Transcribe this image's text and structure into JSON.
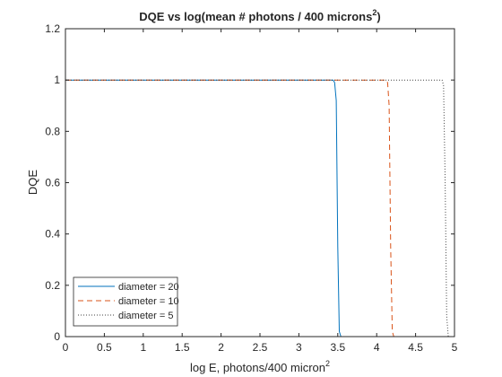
{
  "chart_data": {
    "type": "line",
    "title": {
      "main": "DQE vs log(mean # photons / 400 microns",
      "sup": "2",
      "tail": ")"
    },
    "xlabel": {
      "main": "log E, photons/400 micron",
      "sup": "2"
    },
    "ylabel": "DQE",
    "xlim": [
      0,
      5
    ],
    "ylim": [
      0,
      1.2
    ],
    "xticks": [
      0,
      0.5,
      1,
      1.5,
      2,
      2.5,
      3,
      3.5,
      4,
      4.5,
      5
    ],
    "xtick_labels": [
      "0",
      "0.5",
      "1",
      "1.5",
      "2",
      "2.5",
      "3",
      "3.5",
      "4",
      "4.5",
      "5"
    ],
    "yticks": [
      0,
      0.2,
      0.4,
      0.6,
      0.8,
      1,
      1.2
    ],
    "ytick_labels": [
      "0",
      "0.2",
      "0.4",
      "0.6",
      "0.8",
      "1",
      "1.2"
    ],
    "grid": false,
    "legend_position": "bottom-left",
    "series": [
      {
        "name": "diameter = 20",
        "color": "#0072BD",
        "style": "solid",
        "x": [
          0,
          3.44,
          3.46,
          3.48,
          3.5,
          3.52,
          3.54
        ],
        "y": [
          1,
          1,
          0.99,
          0.92,
          0.35,
          0.02,
          0
        ]
      },
      {
        "name": "diameter = 10",
        "color": "#D95319",
        "style": "dashed",
        "x": [
          0,
          4.12,
          4.14,
          4.16,
          4.18,
          4.2,
          4.22
        ],
        "y": [
          1,
          1,
          0.99,
          0.9,
          0.35,
          0.02,
          0
        ]
      },
      {
        "name": "diameter = 5",
        "color": "#404040",
        "style": "dotted",
        "x": [
          0,
          4.84,
          4.86,
          4.88,
          4.9,
          4.92
        ],
        "y": [
          1,
          1,
          0.98,
          0.6,
          0.08,
          0
        ]
      }
    ]
  }
}
